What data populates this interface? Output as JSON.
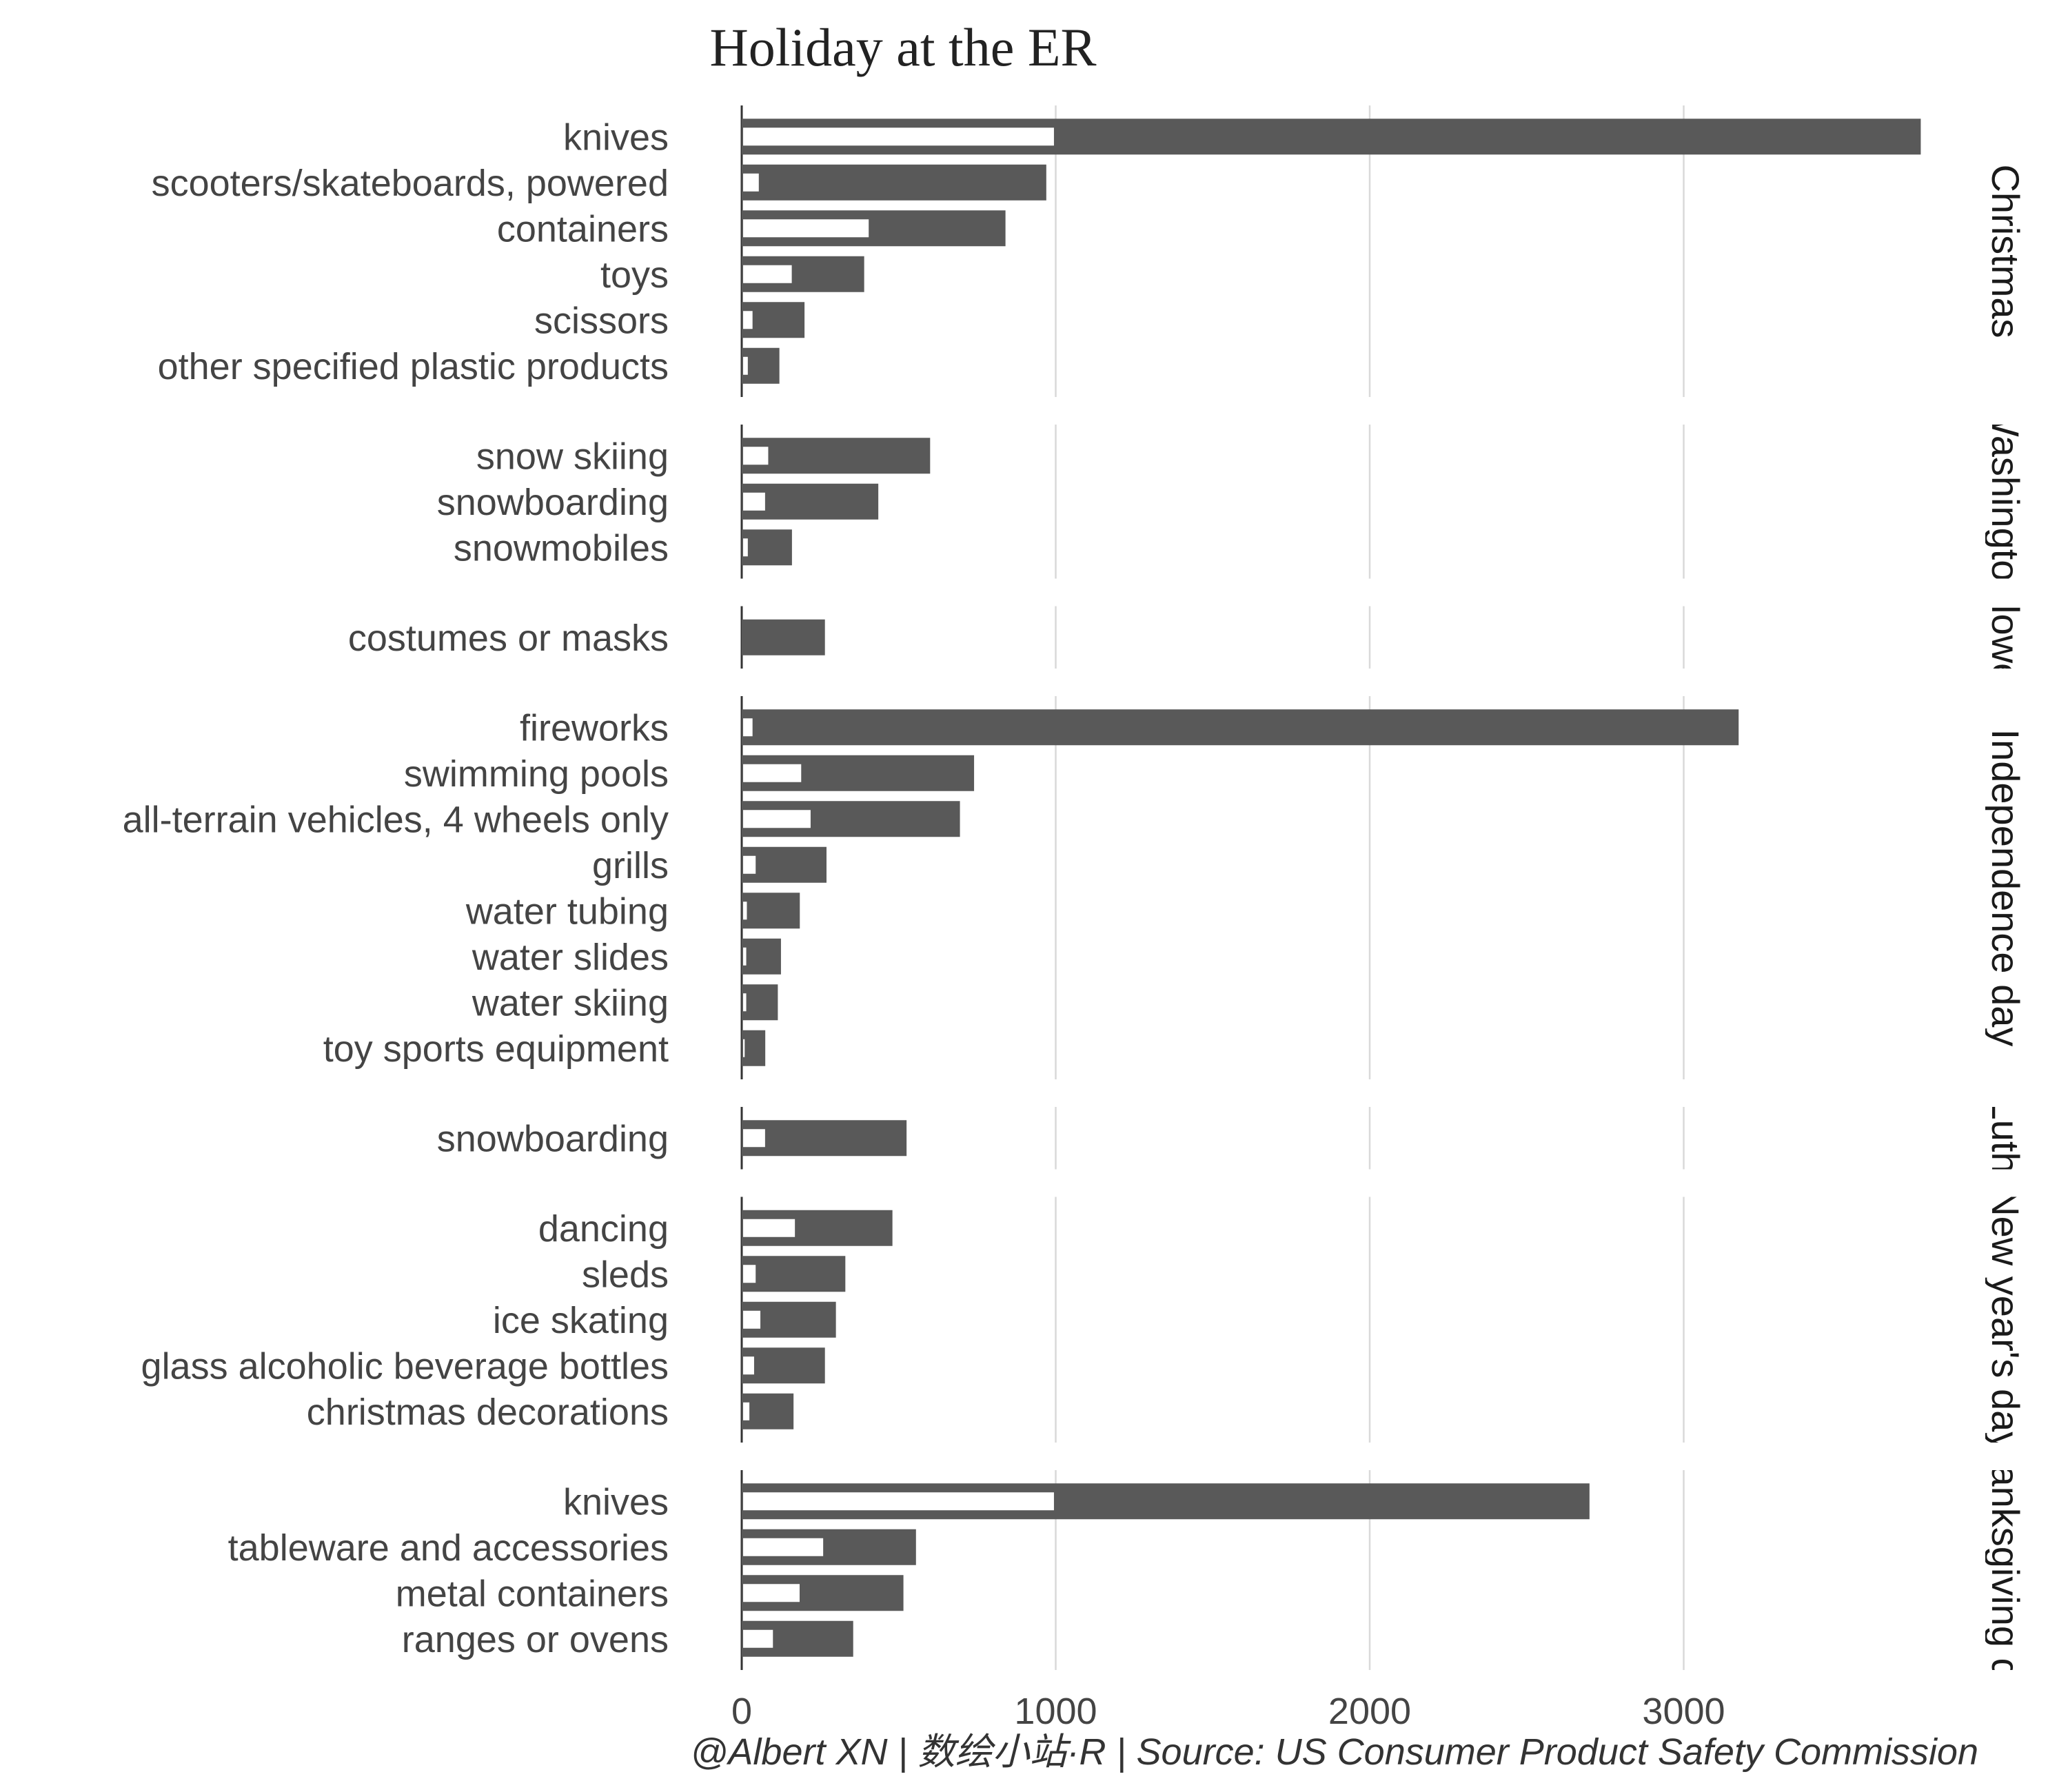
{
  "chart_data": {
    "type": "bar",
    "title": "Holiday at the ER",
    "caption": "@Albert XN | 数绘小站·R | Source: US Consumer Product Safety Commission",
    "xlabel": "",
    "ylabel": "",
    "xlim": [
      0,
      3800
    ],
    "x_ticks": [
      0,
      1000,
      2000,
      3000
    ],
    "x_tick_labels": [
      "0",
      "1000",
      "2000",
      "3000"
    ],
    "grid": "vertical major gridlines",
    "colors": {
      "total_bar": "#595959",
      "inner_bar": "#ffffff"
    },
    "facets": [
      {
        "label": "Christmas",
        "categories": [
          "knives",
          "scooters/skateboards, powered",
          "containers",
          "toys",
          "scissors",
          "other specified plastic products"
        ],
        "total": [
          3755,
          970,
          840,
          390,
          200,
          120
        ],
        "inner": [
          990,
          50,
          400,
          155,
          30,
          15
        ]
      },
      {
        "label": "Washington",
        "categories": [
          "snow skiing",
          "snowboarding",
          "snowmobiles"
        ],
        "total": [
          600,
          435,
          160
        ],
        "inner": [
          80,
          70,
          15
        ]
      },
      {
        "label": "Halloween",
        "categories": [
          "costumes or masks"
        ],
        "total": [
          265
        ],
        "inner": [
          0
        ]
      },
      {
        "label": "Independence day",
        "categories": [
          "fireworks",
          "swimming pools",
          "all-terrain vehicles, 4 wheels only",
          "grills",
          "water tubing",
          "water slides",
          "water skiing",
          "toy sports equipment"
        ],
        "total": [
          3175,
          740,
          695,
          270,
          185,
          125,
          115,
          75
        ],
        "inner": [
          30,
          185,
          215,
          40,
          12,
          10,
          10,
          5
        ]
      },
      {
        "label": "Martin Luther King",
        "categories": [
          "snowboarding"
        ],
        "total": [
          525
        ],
        "inner": [
          70
        ]
      },
      {
        "label": "New year's day",
        "categories": [
          "dancing",
          "sleds",
          "ice skating",
          "glass alcoholic beverage bottles",
          "christmas decorations"
        ],
        "total": [
          480,
          330,
          300,
          265,
          165
        ],
        "inner": [
          165,
          40,
          55,
          35,
          20
        ]
      },
      {
        "label": "Thanksgiving day",
        "categories": [
          "knives",
          "tableware and accessories",
          "metal containers",
          "ranges or ovens"
        ],
        "total": [
          2700,
          555,
          515,
          355
        ],
        "inner": [
          990,
          255,
          180,
          95
        ]
      }
    ]
  }
}
